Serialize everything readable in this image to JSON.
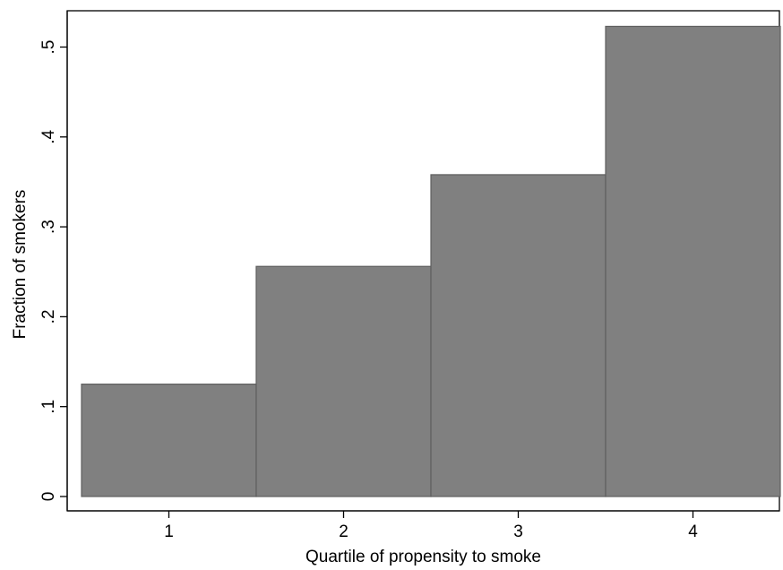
{
  "chart_data": {
    "type": "bar",
    "title": "",
    "xlabel": "Quartile of propensity to smoke",
    "ylabel": "Fraction of smokers",
    "categories": [
      "1",
      "2",
      "3",
      "4"
    ],
    "values": [
      0.125,
      0.256,
      0.358,
      0.523
    ],
    "ylim": [
      0,
      0.54
    ],
    "yticks": [
      0,
      0.1,
      0.2,
      0.3,
      0.4,
      0.5
    ],
    "ytick_labels": [
      "0",
      ".1",
      ".2",
      ".3",
      ".4",
      ".5"
    ],
    "bar_color": "#808080",
    "grid": false,
    "legend": "none"
  }
}
